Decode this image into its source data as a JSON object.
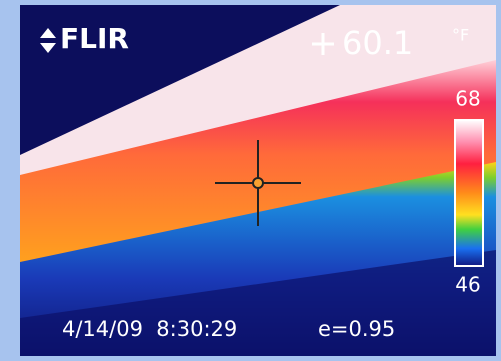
{
  "brand": "FLIR",
  "spot_temperature": "60.1",
  "unit": "°F",
  "scale": {
    "max": "68",
    "min": "46"
  },
  "timestamp": "4/14/09  8:30:29",
  "emissivity": "e=0.95"
}
